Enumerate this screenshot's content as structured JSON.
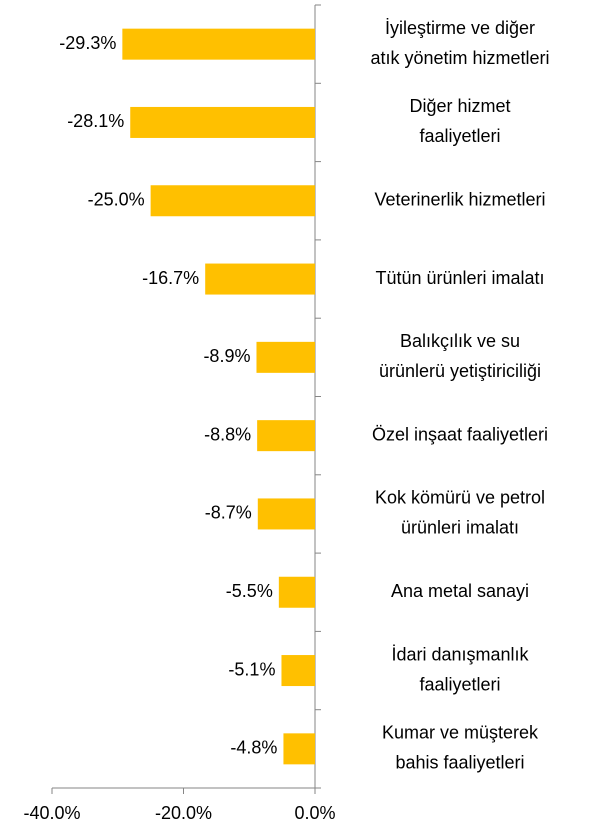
{
  "chart_data": {
    "type": "bar",
    "orientation": "horizontal",
    "color": "#ffc000",
    "categories": [
      [
        "İyileştirme ve diğer",
        "atık yönetim hizmetleri"
      ],
      [
        "Diğer hizmet",
        "faaliyetleri"
      ],
      [
        "Veterinerlik hizmetleri"
      ],
      [
        "Tütün ürünleri imalatı"
      ],
      [
        "Balıkçılık ve su",
        "ürünlerü yetiştiriciliği"
      ],
      [
        "Özel inşaat faaliyetleri"
      ],
      [
        "Kok kömürü ve petrol",
        "ürünleri imalatı"
      ],
      [
        "Ana metal sanayi"
      ],
      [
        "İdari danışmanlık",
        "faaliyetleri"
      ],
      [
        "Kumar ve müşterek",
        "bahis faaliyetleri"
      ]
    ],
    "values": [
      -29.3,
      -28.1,
      -25.0,
      -16.7,
      -8.9,
      -8.8,
      -8.7,
      -5.5,
      -5.1,
      -4.8
    ],
    "value_labels": [
      "-29.3%",
      "-28.1%",
      "-25.0%",
      "-16.7%",
      "-8.9%",
      "-8.8%",
      "-8.7%",
      "-5.5%",
      "-5.1%",
      "-4.8%"
    ],
    "xlim": [
      -40,
      0
    ],
    "xticks": [
      {
        "value": -40,
        "label": "-40.0%"
      },
      {
        "value": -20,
        "label": "-20.0%"
      },
      {
        "value": 0,
        "label": "0.0%"
      }
    ]
  }
}
